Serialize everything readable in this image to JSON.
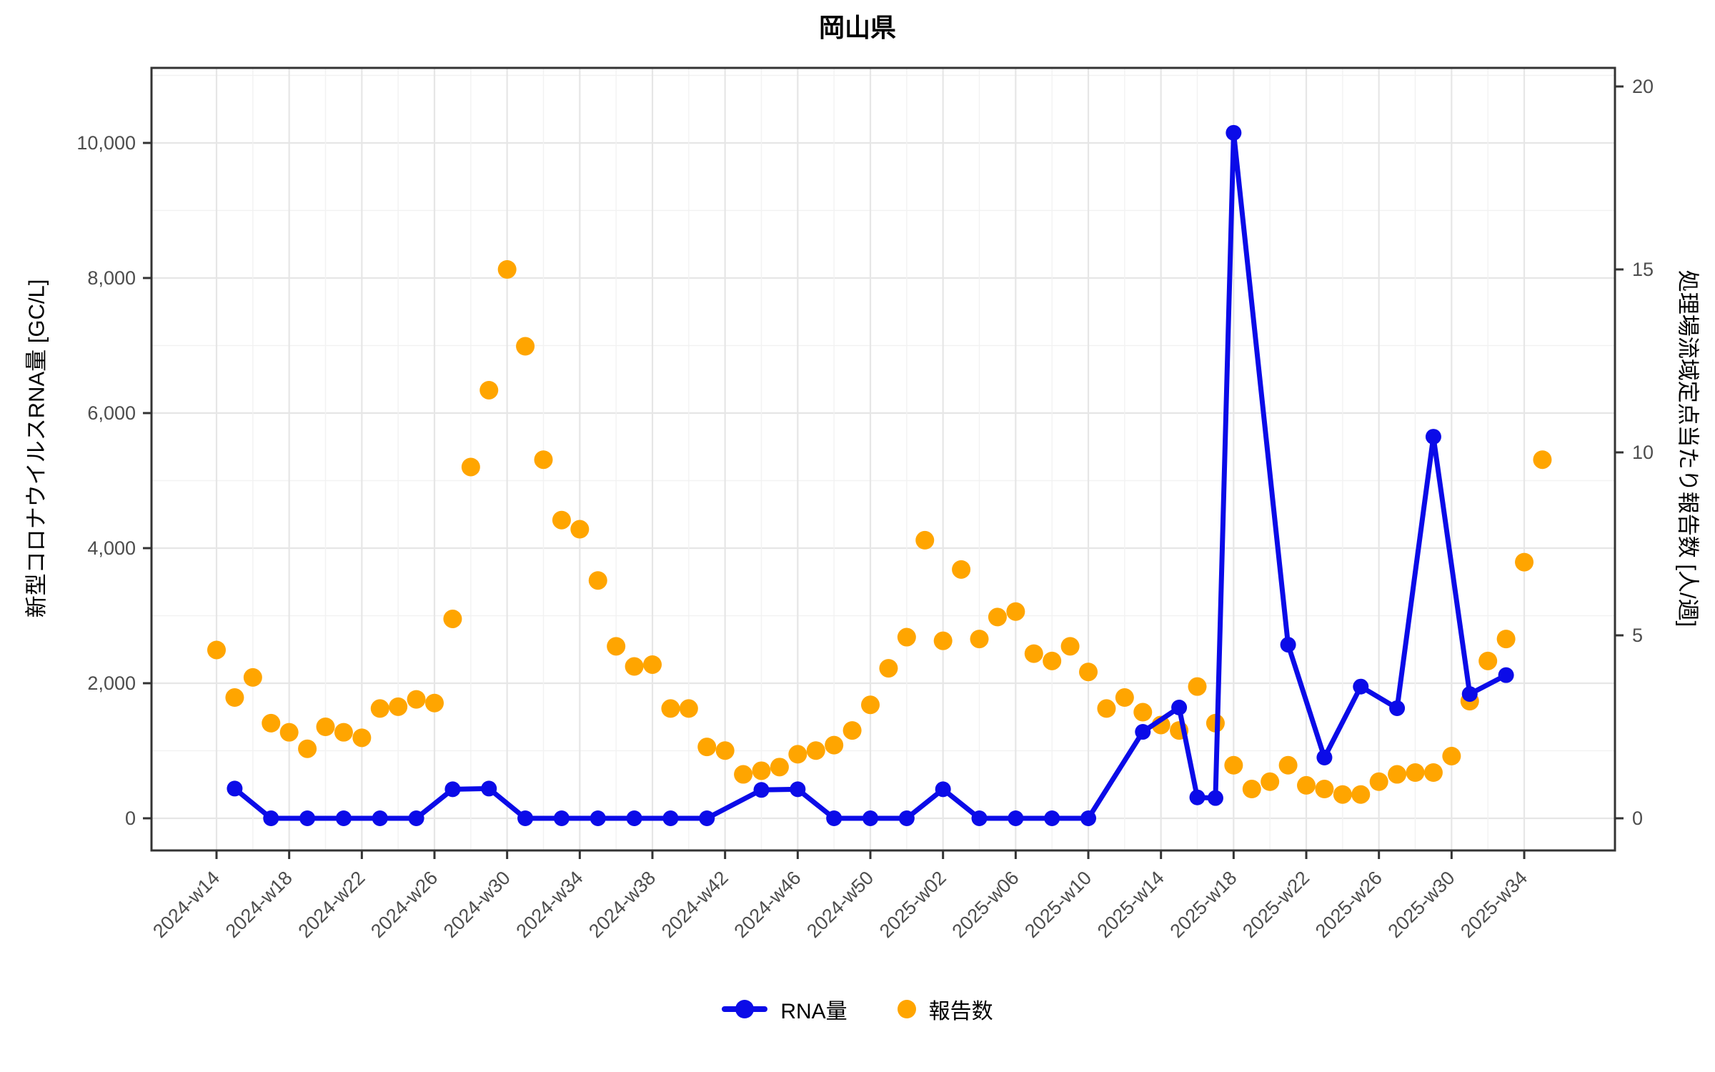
{
  "title": "岡山県",
  "legend": {
    "rna_label": "RNA量",
    "reported_label": "報告数"
  },
  "colors": {
    "rna": "#0b0be8",
    "reported": "#ffa500",
    "grid_major": "#e6e6e6",
    "grid_minor": "#f2f2f2",
    "axis_text": "#4d4d4d",
    "axis_line": "#333333"
  },
  "chart_data": {
    "type": "line",
    "title": "岡山県",
    "xlabel": "",
    "ylabel_left": "新型コロナウイルスRNA量 [GC/L]",
    "ylabel_right": "処理場流域定点当たり報告数 [人/週]",
    "grid": true,
    "legend_position": "bottom",
    "x_weeks": [
      "2024-w14",
      "2024-w15",
      "2024-w16",
      "2024-w17",
      "2024-w18",
      "2024-w19",
      "2024-w20",
      "2024-w21",
      "2024-w22",
      "2024-w23",
      "2024-w24",
      "2024-w25",
      "2024-w26",
      "2024-w27",
      "2024-w28",
      "2024-w29",
      "2024-w30",
      "2024-w31",
      "2024-w32",
      "2024-w33",
      "2024-w34",
      "2024-w35",
      "2024-w36",
      "2024-w37",
      "2024-w38",
      "2024-w39",
      "2024-w40",
      "2024-w41",
      "2024-w42",
      "2024-w43",
      "2024-w44",
      "2024-w45",
      "2024-w46",
      "2024-w47",
      "2024-w48",
      "2024-w49",
      "2024-w50",
      "2024-w51",
      "2024-w52",
      "2025-w01",
      "2025-w02",
      "2025-w03",
      "2025-w04",
      "2025-w05",
      "2025-w06",
      "2025-w07",
      "2025-w08",
      "2025-w09",
      "2025-w10",
      "2025-w11",
      "2025-w12",
      "2025-w13",
      "2025-w14",
      "2025-w15",
      "2025-w16",
      "2025-w17",
      "2025-w18",
      "2025-w19",
      "2025-w20",
      "2025-w21",
      "2025-w22",
      "2025-w23",
      "2025-w24",
      "2025-w25",
      "2025-w26",
      "2025-w27",
      "2025-w28",
      "2025-w29",
      "2025-w30",
      "2025-w31",
      "2025-w32",
      "2025-w33",
      "2025-w34",
      "2025-w35"
    ],
    "x_tick_indices": [
      0,
      4,
      8,
      12,
      16,
      20,
      24,
      28,
      32,
      36,
      40,
      44,
      48,
      52,
      56,
      60,
      64,
      68,
      72
    ],
    "x_tick_labels": [
      "2024-w14",
      "2024-w18",
      "2024-w22",
      "2024-w26",
      "2024-w30",
      "2024-w34",
      "2024-w38",
      "2024-w42",
      "2024-w46",
      "2024-w50",
      "2025-w02",
      "2025-w06",
      "2025-w10",
      "2025-w14",
      "2025-w18",
      "2025-w22",
      "2025-w26",
      "2025-w30",
      "2025-w34"
    ],
    "left_axis": {
      "label": "新型コロナウイルスRNA量 [GC/L]",
      "tick_values": [
        0,
        2000,
        4000,
        6000,
        8000,
        10000
      ],
      "tick_labels": [
        "0",
        "2,000",
        "4,000",
        "6,000",
        "8,000",
        "10,000"
      ],
      "minor_values": [
        1000,
        3000,
        5000,
        7000,
        9000,
        11000
      ],
      "range": [
        -480,
        11110
      ]
    },
    "right_axis": {
      "label": "処理場流域定点当たり報告数 [人/週]",
      "tick_values": [
        0,
        5,
        10,
        15,
        20
      ],
      "tick_labels": [
        "0",
        "5",
        "10",
        "15",
        "20"
      ],
      "range": [
        -0.9,
        20.5
      ]
    },
    "series": [
      {
        "name": "RNA量",
        "axis": "left",
        "style": "line+point",
        "color": "#0b0be8",
        "points": [
          [
            1,
            440
          ],
          [
            3,
            0
          ],
          [
            5,
            0
          ],
          [
            7,
            0
          ],
          [
            9,
            0
          ],
          [
            11,
            0
          ],
          [
            13,
            430
          ],
          [
            15,
            440
          ],
          [
            17,
            0
          ],
          [
            19,
            0
          ],
          [
            21,
            0
          ],
          [
            23,
            0
          ],
          [
            25,
            0
          ],
          [
            27,
            0
          ],
          [
            30,
            420
          ],
          [
            32,
            430
          ],
          [
            34,
            0
          ],
          [
            36,
            0
          ],
          [
            38,
            0
          ],
          [
            40,
            430
          ],
          [
            42,
            0
          ],
          [
            44,
            0
          ],
          [
            46,
            0
          ],
          [
            48,
            0
          ],
          [
            51,
            1280
          ],
          [
            53,
            1640
          ],
          [
            54,
            310
          ],
          [
            55,
            300
          ],
          [
            56,
            10150
          ],
          [
            59,
            2570
          ],
          [
            61,
            900
          ],
          [
            63,
            1950
          ],
          [
            65,
            1630
          ],
          [
            67,
            5650
          ],
          [
            69,
            1840
          ],
          [
            71,
            2120
          ]
        ]
      },
      {
        "name": "報告数",
        "axis": "right",
        "style": "point",
        "color": "#ffa500",
        "values": [
          4.6,
          3.3,
          3.85,
          2.6,
          2.35,
          1.9,
          2.5,
          2.35,
          2.2,
          3.0,
          3.05,
          3.25,
          3.15,
          5.45,
          9.6,
          11.7,
          15.0,
          12.9,
          9.8,
          8.15,
          7.9,
          6.5,
          4.7,
          4.15,
          4.2,
          3.0,
          3.0,
          1.95,
          1.85,
          1.2,
          1.3,
          1.4,
          1.75,
          1.85,
          2.0,
          2.4,
          3.1,
          4.1,
          4.95,
          7.6,
          4.85,
          6.8,
          4.9,
          5.5,
          5.65,
          4.5,
          4.3,
          4.7,
          4.0,
          3.0,
          3.3,
          2.9,
          2.55,
          2.4,
          3.6,
          2.6,
          1.45,
          0.8,
          1.0,
          1.45,
          0.9,
          0.8,
          0.65,
          0.65,
          1.0,
          1.2,
          1.25,
          1.25,
          1.7,
          3.2,
          4.3,
          4.9,
          7.0,
          9.8
        ]
      }
    ]
  }
}
